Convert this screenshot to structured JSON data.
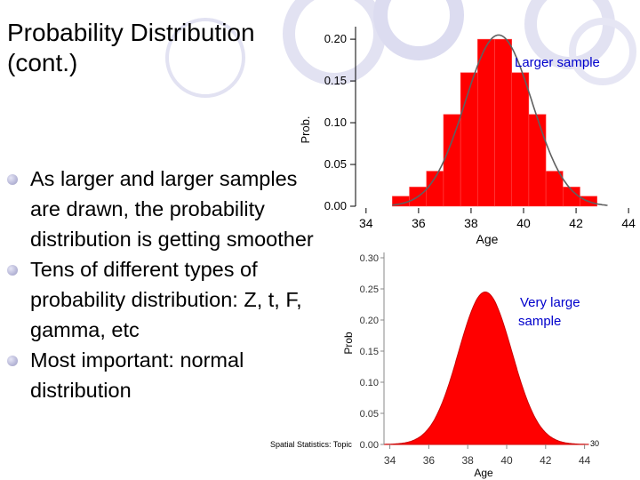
{
  "slide": {
    "title_line1": "Probability Distribution",
    "title_line2": "(cont.)",
    "bullets": [
      "As larger and larger samples are drawn, the probability distribution is getting smoother",
      "Tens of different types of probability distribution: Z, t, F, gamma, etc",
      "Most important: normal distribution"
    ],
    "footer": "Spatial Statistics: Topic",
    "page_number": "30"
  },
  "colors": {
    "bars": "#ff0000",
    "curve": "#606060",
    "accent_text": "#0000cc",
    "deco_ring": "#dcdcf0"
  },
  "chart_data": [
    {
      "type": "bar",
      "title": "",
      "annotation": "Larger sample",
      "xlabel": "Age",
      "ylabel": "Prob.",
      "xticks": [
        "34",
        "36",
        "38",
        "40",
        "42",
        "44"
      ],
      "yticks": [
        "0.00",
        "0.05",
        "0.10",
        "0.15",
        "0.20"
      ],
      "xlim": [
        33.6,
        44.3
      ],
      "ylim": [
        0,
        0.215
      ],
      "bin_width": 0.65,
      "bins_left": [
        35.0,
        35.65,
        36.3,
        36.95,
        37.6,
        38.25,
        38.9,
        39.55,
        40.2,
        40.85,
        41.5,
        42.15
      ],
      "values": [
        0.012,
        0.023,
        0.042,
        0.11,
        0.16,
        0.2,
        0.2,
        0.16,
        0.11,
        0.042,
        0.023,
        0.012
      ],
      "curve": {
        "type": "normal",
        "mean": 39.05,
        "sd": 1.28,
        "peak": 0.205
      }
    },
    {
      "type": "area",
      "title": "",
      "annotation_line1": "Very large",
      "annotation_line2": "sample",
      "xlabel": "Age",
      "ylabel": "Prob",
      "xticks": [
        "34",
        "36",
        "38",
        "40",
        "42",
        "44"
      ],
      "yticks": [
        "0.00",
        "0.05",
        "0.10",
        "0.15",
        "0.20",
        "0.25",
        "0.30"
      ],
      "xlim": [
        33.7,
        44.2
      ],
      "ylim": [
        0,
        0.3
      ],
      "curve": {
        "type": "normal",
        "mean": 38.9,
        "sd": 1.37,
        "peak": 0.245
      }
    }
  ]
}
